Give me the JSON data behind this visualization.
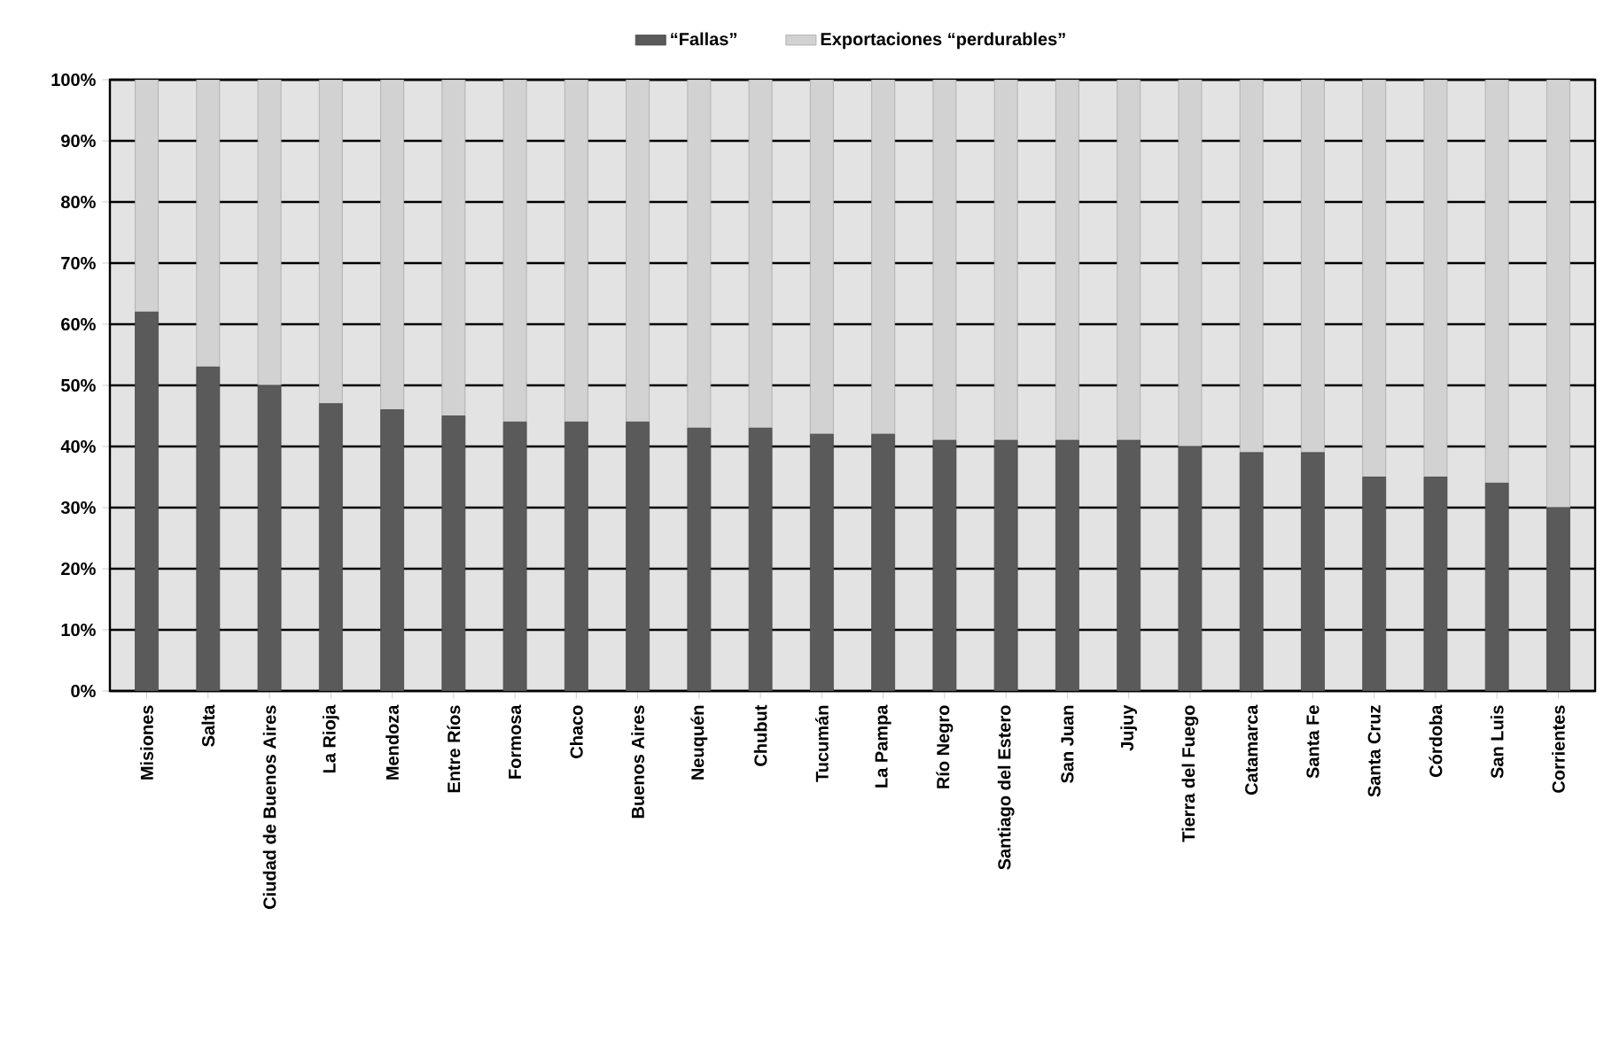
{
  "chart_data": {
    "type": "bar",
    "stacked": true,
    "categories": [
      "Misiones",
      "Salta",
      "Ciudad de Buenos Aires",
      "La Rioja",
      "Mendoza",
      "Entre Ríos",
      "Formosa",
      "Chaco",
      "Buenos Aires",
      "Neuquén",
      "Chubut",
      "Tucumán",
      "La Pampa",
      "Río Negro",
      "Santiago del Estero",
      "San Juan",
      "Jujuy",
      "Tierra del Fuego",
      "Catamarca",
      "Santa Fe",
      "Santa Cruz",
      "Córdoba",
      "San Luis",
      "Corrientes"
    ],
    "series": [
      {
        "name": "“Fallas”",
        "color": "#5a5a5a",
        "values": [
          62,
          53,
          50,
          47,
          46,
          45,
          44,
          44,
          44,
          43,
          43,
          42,
          42,
          41,
          41,
          41,
          41,
          40,
          39,
          39,
          35,
          35,
          34,
          30
        ]
      },
      {
        "name": "Exportaciones “perdurables”",
        "color": "#d2d2d2",
        "values": [
          38,
          47,
          50,
          53,
          54,
          55,
          56,
          56,
          56,
          57,
          57,
          58,
          58,
          59,
          59,
          59,
          59,
          60,
          61,
          61,
          65,
          65,
          66,
          70
        ]
      }
    ],
    "ylim": [
      0,
      100
    ],
    "yticks": [
      {
        "value": 0,
        "label": "0%"
      },
      {
        "value": 10,
        "label": "10%"
      },
      {
        "value": 20,
        "label": "20%"
      },
      {
        "value": 30,
        "label": "30%"
      },
      {
        "value": 40,
        "label": "40%"
      },
      {
        "value": 50,
        "label": "50%"
      },
      {
        "value": 60,
        "label": "60%"
      },
      {
        "value": 70,
        "label": "70%"
      },
      {
        "value": 80,
        "label": "80%"
      },
      {
        "value": 90,
        "label": "90%"
      },
      {
        "value": 100,
        "label": "100%"
      }
    ],
    "grid": "y",
    "legend": "top"
  }
}
